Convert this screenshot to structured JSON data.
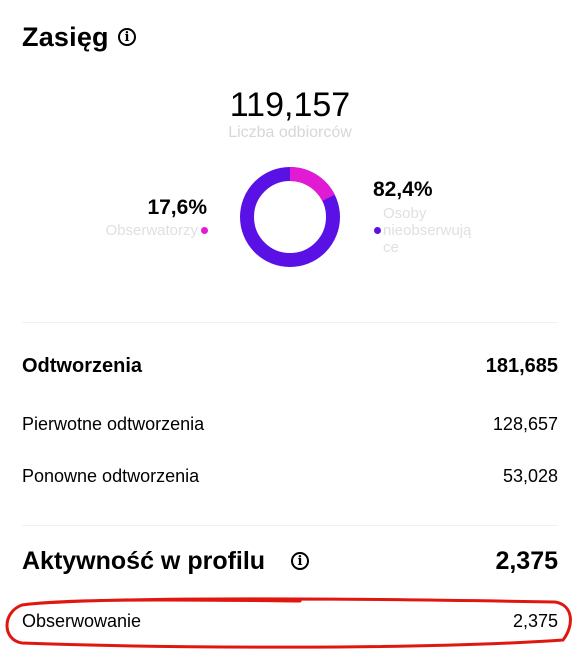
{
  "reach": {
    "title": "Zasięg",
    "info_icon": "info-icon",
    "total": "119,157",
    "total_label": "Liczba odbiorców",
    "followers": {
      "percent": "17,6%",
      "label": "Obserwatorzy",
      "color": "#e11bd3",
      "value_fraction": 0.176
    },
    "non_followers": {
      "percent": "82,4%",
      "label_line1": "Osoby",
      "label_line2": "nieobserwują",
      "label_line3": "ce",
      "color": "#5a11e6",
      "value_fraction": 0.824
    }
  },
  "plays": {
    "label": "Odtworzenia",
    "value": "181,685",
    "rows": [
      {
        "label": "Pierwotne odtworzenia",
        "value": "128,657"
      },
      {
        "label": "Ponowne odtworzenia",
        "value": "53,028"
      }
    ]
  },
  "profile_activity": {
    "title": "Aktywność w profilu",
    "info_icon": "info-icon",
    "value": "2,375",
    "rows": [
      {
        "label": "Obserwowanie",
        "value": "2,375"
      }
    ],
    "highlight_color": "#e0170f"
  }
}
